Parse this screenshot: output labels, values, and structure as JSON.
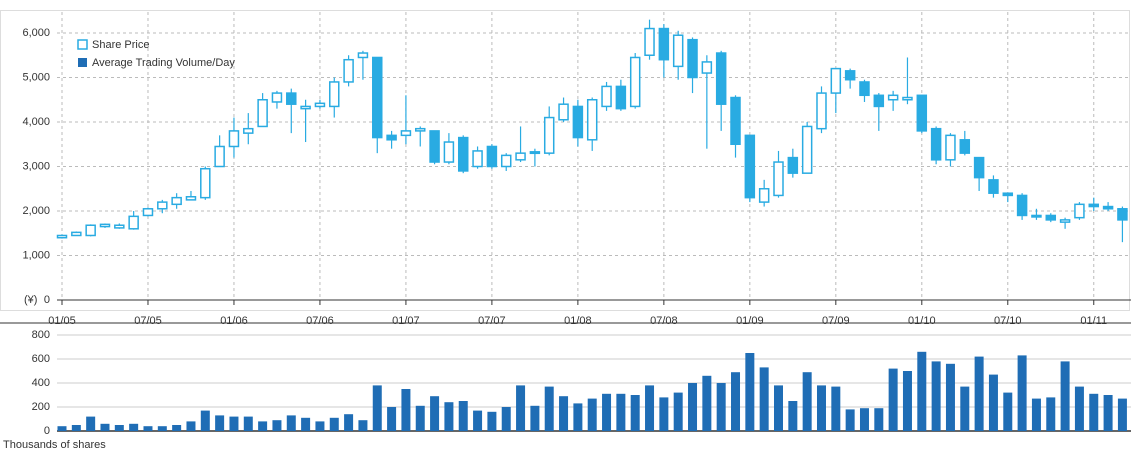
{
  "chart_data": [
    {
      "type": "candlestick",
      "y_label": "(¥)",
      "categories": [
        "01/05",
        null,
        null,
        null,
        null,
        null,
        "07/05",
        null,
        null,
        null,
        null,
        null,
        "01/06",
        null,
        null,
        null,
        null,
        null,
        "07/06",
        null,
        null,
        null,
        null,
        null,
        "01/07",
        null,
        null,
        null,
        null,
        null,
        "07/07",
        null,
        null,
        null,
        null,
        null,
        "01/08",
        null,
        null,
        null,
        null,
        null,
        "07/08",
        null,
        null,
        null,
        null,
        null,
        "01/09",
        null,
        null,
        null,
        null,
        null,
        "07/09",
        null,
        null,
        null,
        null,
        null,
        "01/10",
        null,
        null,
        null,
        null,
        null,
        "07/10",
        null,
        null,
        null,
        null,
        null,
        "01/11",
        null,
        null
      ],
      "series": [
        {
          "name": "Share Price",
          "color": "#29abe2",
          "open": [
            1400,
            1450,
            1450,
            1650,
            1620,
            1600,
            1900,
            2050,
            2150,
            2250,
            2300,
            3000,
            3450,
            3750,
            3900,
            4450,
            4650,
            4300,
            4350,
            4350,
            4900,
            5450,
            5450,
            3700,
            3700,
            3800,
            3800,
            3100,
            3650,
            3000,
            3450,
            3000,
            3150,
            3300,
            3300,
            4050,
            4350,
            3600,
            4350,
            4800,
            4350,
            5500,
            6100,
            5250,
            5850,
            5100,
            5550,
            4550,
            3700,
            2200,
            2350,
            3200,
            2850,
            3850,
            4650,
            5150,
            4900,
            4600,
            4500,
            4500,
            4600,
            3850,
            3150,
            3600,
            3200,
            2700,
            2400,
            2350,
            1900,
            1900,
            1750,
            1850,
            2150,
            2100,
            2050
          ],
          "high": [
            1470,
            1540,
            1700,
            1720,
            1720,
            2000,
            2080,
            2250,
            2400,
            2450,
            3000,
            3700,
            4100,
            4200,
            4650,
            4700,
            4750,
            4500,
            4500,
            5000,
            5500,
            5600,
            5450,
            3800,
            4600,
            3900,
            3800,
            3750,
            3700,
            3450,
            3500,
            3300,
            3900,
            3400,
            4350,
            4550,
            4500,
            4550,
            4900,
            4950,
            5550,
            6300,
            6200,
            6050,
            5900,
            5500,
            5600,
            4600,
            3700,
            2700,
            3350,
            3400,
            4000,
            4800,
            5200,
            5200,
            4950,
            4650,
            4700,
            5450,
            4600,
            3900,
            3750,
            3800,
            3200,
            2800,
            2400,
            2400,
            2050,
            1950,
            1850,
            2200,
            2300,
            2200,
            2100
          ],
          "low": [
            1380,
            1440,
            1430,
            1620,
            1600,
            1580,
            1880,
            1950,
            2050,
            2250,
            2250,
            3000,
            3200,
            3500,
            3900,
            4300,
            3750,
            3550,
            4300,
            4100,
            4800,
            4950,
            3300,
            3400,
            3500,
            3450,
            3050,
            3050,
            2850,
            2950,
            2950,
            2900,
            3100,
            3000,
            3250,
            4000,
            3450,
            3350,
            4250,
            4250,
            4300,
            5400,
            5000,
            4950,
            4650,
            3400,
            3800,
            3200,
            2200,
            2100,
            2300,
            2750,
            2850,
            3750,
            4200,
            4750,
            4450,
            3800,
            4250,
            4400,
            3750,
            3050,
            3000,
            3250,
            2450,
            2300,
            2200,
            1800,
            1800,
            1750,
            1600,
            1800,
            2000,
            2000,
            1300
          ],
          "close": [
            1450,
            1520,
            1680,
            1700,
            1680,
            1880,
            2050,
            2200,
            2300,
            2320,
            2950,
            3450,
            3800,
            3850,
            4500,
            4650,
            4400,
            4350,
            4420,
            4900,
            5400,
            5550,
            3650,
            3600,
            3800,
            3850,
            3100,
            3550,
            2900,
            3350,
            3000,
            3250,
            3300,
            3330,
            4100,
            4400,
            3650,
            4500,
            4800,
            4300,
            5450,
            6100,
            5400,
            5950,
            5000,
            5350,
            4400,
            3500,
            2300,
            2500,
            3100,
            2850,
            3900,
            4650,
            5200,
            4950,
            4600,
            4350,
            4600,
            4550,
            3800,
            3150,
            3700,
            3300,
            2750,
            2400,
            2350,
            1900,
            1880,
            1800,
            1800,
            2150,
            2100,
            2050,
            1800
          ]
        }
      ],
      "ylim": [
        0,
        6000
      ],
      "yticks": [
        0,
        {
          "value": 1000,
          "label": "1,000"
        },
        {
          "value": 2000,
          "label": "2,000"
        },
        {
          "value": 3000,
          "label": "3,000"
        },
        {
          "value": 4000,
          "label": "4,000"
        },
        {
          "value": 5000,
          "label": "5,000"
        },
        {
          "value": 6000,
          "label": "6,000"
        }
      ],
      "grid": true
    },
    {
      "type": "bar",
      "y_label": "Thousands of shares",
      "series": [
        {
          "name": "Average Trading Volume/Day",
          "color": "#1f6db5",
          "values": [
            40,
            50,
            120,
            60,
            50,
            60,
            40,
            40,
            50,
            80,
            170,
            130,
            120,
            120,
            80,
            90,
            130,
            110,
            80,
            110,
            140,
            90,
            380,
            200,
            350,
            210,
            290,
            240,
            250,
            170,
            160,
            200,
            380,
            210,
            370,
            290,
            230,
            270,
            310,
            310,
            300,
            380,
            280,
            320,
            400,
            460,
            400,
            490,
            650,
            530,
            380,
            250,
            490,
            380,
            370,
            180,
            190,
            190,
            520,
            500,
            660,
            580,
            560,
            370,
            620,
            470,
            320,
            630,
            270,
            280,
            580,
            370,
            310,
            300,
            270
          ]
        }
      ],
      "ylim": [
        0,
        800
      ],
      "yticks": [
        0,
        200,
        400,
        600,
        800
      ],
      "grid": true
    }
  ]
}
